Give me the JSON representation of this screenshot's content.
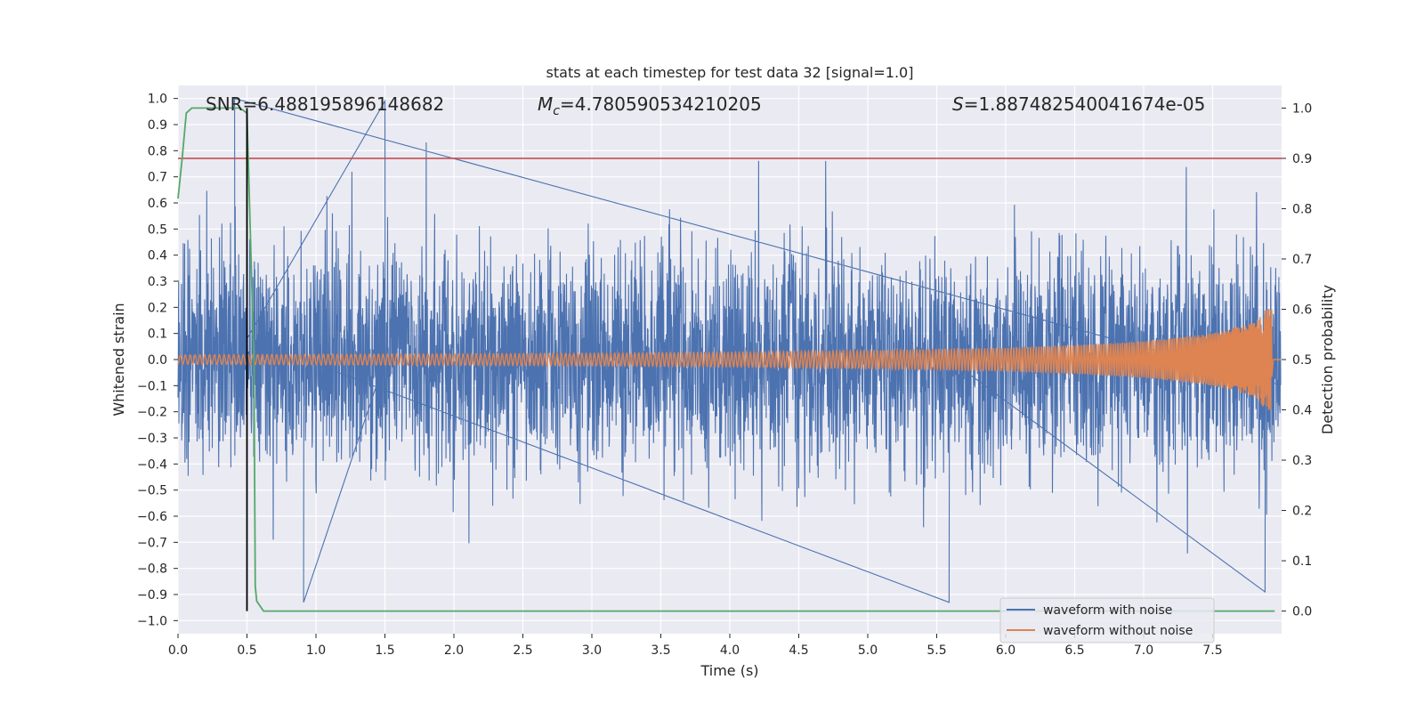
{
  "chart_data": {
    "type": "line",
    "title": "stats at each timestep for test data 32 [signal=1.0]",
    "xlabel": "Time (s)",
    "ylabel": "Whitened strain",
    "y2label": "Detection probability",
    "xlim": [
      0.0,
      8.0
    ],
    "ylim": [
      -1.05,
      1.05
    ],
    "y2lim": [
      -0.045,
      1.045
    ],
    "x_ticks": [
      "0.0",
      "0.5",
      "1.0",
      "1.5",
      "2.0",
      "2.5",
      "3.0",
      "3.5",
      "4.0",
      "4.5",
      "5.0",
      "5.5",
      "6.0",
      "6.5",
      "7.0",
      "7.5"
    ],
    "y_ticks": [
      "1.0",
      "0.9",
      "0.8",
      "0.7",
      "0.6",
      "0.5",
      "0.4",
      "0.3",
      "0.2",
      "0.1",
      "0.0",
      "−0.1",
      "−0.2",
      "−0.3",
      "−0.4",
      "−0.5",
      "−0.6",
      "−0.7",
      "−0.8",
      "−0.9",
      "−1.0"
    ],
    "y2_ticks": [
      "1.0",
      "0.9",
      "0.8",
      "0.7",
      "0.6",
      "0.5",
      "0.4",
      "0.3",
      "0.2",
      "0.1",
      "0.0"
    ],
    "annotations": {
      "snr": "SNR=6.488195896148682",
      "mc_symbol": "M",
      "mc_sub": "c",
      "mc_value": "=4.780590534210205",
      "s_symbol": "S",
      "s_value": "=1.887482540041674e-05"
    },
    "series": [
      {
        "name": "waveform with noise",
        "color": "#4c72b0",
        "description": "dense noisy strain, mostly within ±0.5, peaks to about ±1.0",
        "noise_core_range": [
          -0.45,
          0.45
        ],
        "noise_peak_range": [
          -1.0,
          1.0
        ],
        "notable_peaks": [
          {
            "x": 0.41,
            "y": 1.0
          },
          {
            "x": 1.5,
            "y": 0.99
          },
          {
            "x": 0.91,
            "y": -0.93
          },
          {
            "x": 5.59,
            "y": -0.93
          },
          {
            "x": 7.88,
            "y": -0.89
          }
        ]
      },
      {
        "name": "waveform without noise",
        "color": "#dd8452",
        "description": "inspiral chirp, amplitude growing toward merger near 7.92 s",
        "envelope": [
          {
            "x": 0.0,
            "a": 0.018
          },
          {
            "x": 1.0,
            "a": 0.02
          },
          {
            "x": 2.0,
            "a": 0.022
          },
          {
            "x": 3.0,
            "a": 0.024
          },
          {
            "x": 4.0,
            "a": 0.028
          },
          {
            "x": 5.0,
            "a": 0.035
          },
          {
            "x": 6.0,
            "a": 0.045
          },
          {
            "x": 6.5,
            "a": 0.055
          },
          {
            "x": 7.0,
            "a": 0.07
          },
          {
            "x": 7.5,
            "a": 0.1
          },
          {
            "x": 7.8,
            "a": 0.14
          },
          {
            "x": 7.9,
            "a": 0.2
          },
          {
            "x": 7.93,
            "a": 0.19
          }
        ],
        "merger_time": 7.93
      },
      {
        "name": "detection probability",
        "color": "#55a868",
        "axis": "right",
        "x": [
          0.0,
          0.03,
          0.06,
          0.1,
          0.45,
          0.5,
          0.55,
          0.56,
          0.57,
          0.62,
          7.95
        ],
        "y": [
          0.82,
          0.9,
          0.99,
          1.0,
          1.0,
          0.99,
          0.5,
          0.05,
          0.02,
          0.0,
          0.0
        ]
      }
    ],
    "threshold": {
      "axis": "right",
      "y": 0.9,
      "color": "#c44e52"
    },
    "vline": {
      "x": 0.5,
      "y2_from": 0.0,
      "y2_to": 1.0,
      "color": "#000000"
    },
    "legend": {
      "position": "lower-right",
      "entries": [
        {
          "label": "waveform with noise",
          "color": "#4c72b0"
        },
        {
          "label": "waveform without noise",
          "color": "#dd8452"
        }
      ]
    }
  }
}
